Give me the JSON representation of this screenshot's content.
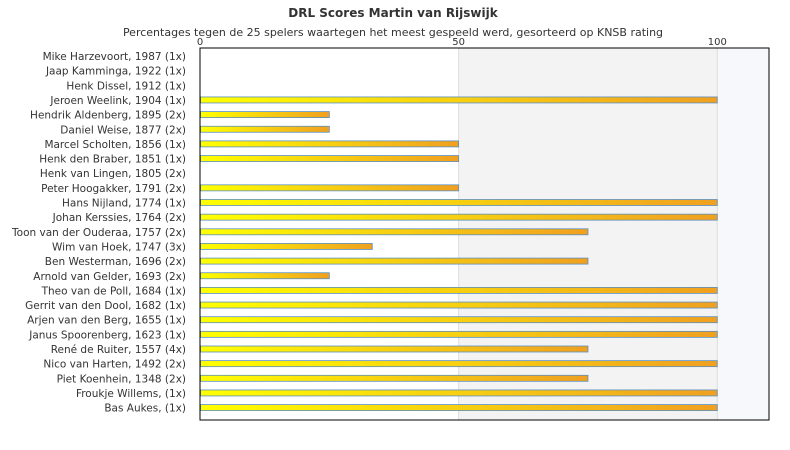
{
  "chart_data": {
    "type": "bar",
    "orientation": "horizontal",
    "title": "DRL Scores Martin van Rijswijk",
    "subtitle": "Percentages tegen de 25 spelers waartegen het meest gespeeld werd, gesorteerd op KNSB rating",
    "xlim": [
      0,
      110
    ],
    "xticks": [
      "0",
      "50",
      "100"
    ],
    "categories": [
      "Mike Harzevoort, 1987 (1x)",
      "Jaap Kamminga, 1922 (1x)",
      "Henk Dissel, 1912 (1x)",
      "Jeroen Weelink, 1904 (1x)",
      "Hendrik Aldenberg, 1895 (2x)",
      "Daniel Weise, 1877 (2x)",
      "Marcel Scholten, 1856 (1x)",
      "Henk den Braber, 1851 (1x)",
      "Henk van Lingen, 1805 (2x)",
      "Peter Hoogakker, 1791 (2x)",
      "Hans Nijland, 1774 (1x)",
      "Johan Kerssies, 1764 (2x)",
      "Toon van der Ouderaa, 1757 (2x)",
      "Wim van Hoek, 1747 (3x)",
      "Ben Westerman, 1696 (2x)",
      "Arnold van Gelder, 1693 (2x)",
      "Theo van de Poll, 1684 (1x)",
      "Gerrit van den Dool, 1682 (1x)",
      "Arjen van den Berg, 1655 (1x)",
      "Janus Spoorenberg, 1623 (1x)",
      "René de Ruiter, 1557 (4x)",
      "Nico van Harten, 1492 (2x)",
      "Piet Koenhein, 1348 (2x)",
      "Froukje Willems,  (1x)",
      "Bas Aukes,  (1x)"
    ],
    "values": [
      0,
      0,
      0,
      100,
      25,
      25,
      50,
      50,
      0,
      50,
      100,
      100,
      75,
      33.3,
      75,
      25,
      100,
      100,
      100,
      100,
      75,
      100,
      75,
      100,
      100
    ],
    "grid": true,
    "legend": "none",
    "colors": {
      "bar_start": "#ffff00",
      "bar_end": "#f0a020",
      "bar_border": "#5b8fc0",
      "band_light": "#ffffff",
      "band_shade": "#f3f3f3",
      "band_edge": "#f6f8fb",
      "axis": "#000000"
    }
  }
}
